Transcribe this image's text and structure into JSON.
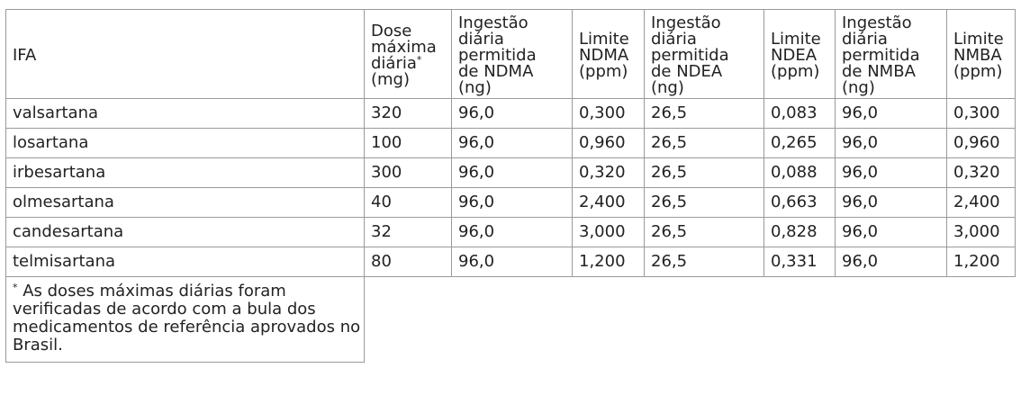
{
  "table": {
    "headers": [
      {
        "key": "ifa",
        "lines": [
          "IFA"
        ]
      },
      {
        "key": "dose",
        "lines": [
          "Dose",
          "máxima",
          "diária*",
          "(mg)"
        ]
      },
      {
        "key": "ingest_ndma",
        "lines": [
          "Ingestão",
          "diária",
          "permitida",
          "de NDMA",
          "(ng)"
        ]
      },
      {
        "key": "lim_ndma",
        "lines": [
          "Limite",
          "NDMA",
          "(ppm)"
        ]
      },
      {
        "key": "ingest_ndea",
        "lines": [
          "Ingestão",
          "diária",
          "permitida",
          "de NDEA",
          "(ng)"
        ]
      },
      {
        "key": "lim_ndea",
        "lines": [
          "Limite",
          "NDEA",
          "(ppm)"
        ]
      },
      {
        "key": "ingest_nmba",
        "lines": [
          "Ingestão",
          "diária",
          "permitida",
          "de NMBA",
          "(ng)"
        ]
      },
      {
        "key": "lim_nmba",
        "lines": [
          "Limite",
          "NMBA",
          "(ppm)"
        ]
      }
    ],
    "rows": [
      [
        "valsartana",
        "320",
        "96,0",
        "0,300",
        "26,5",
        "0,083",
        "96,0",
        "0,300"
      ],
      [
        "losartana",
        "100",
        "96,0",
        "0,960",
        "26,5",
        "0,265",
        "96,0",
        "0,960"
      ],
      [
        "irbesartana",
        "300",
        "96,0",
        "0,320",
        "26,5",
        "0,088",
        "96,0",
        "0,320"
      ],
      [
        "olmesartana",
        "40",
        "96,0",
        "2,400",
        "26,5",
        "0,663",
        "96,0",
        "2,400"
      ],
      [
        "candesartana",
        "32",
        "96,0",
        "3,000",
        "26,5",
        "0,828",
        "96,0",
        "3,000"
      ],
      [
        "telmisartana",
        "80",
        "96,0",
        "1,200",
        "26,5",
        "0,331",
        "96,0",
        "1,200"
      ]
    ],
    "footnote": "* As doses máximas diárias foram verificadas de acordo com a bula dos medicamentos de referência aprovados no Brasil."
  }
}
